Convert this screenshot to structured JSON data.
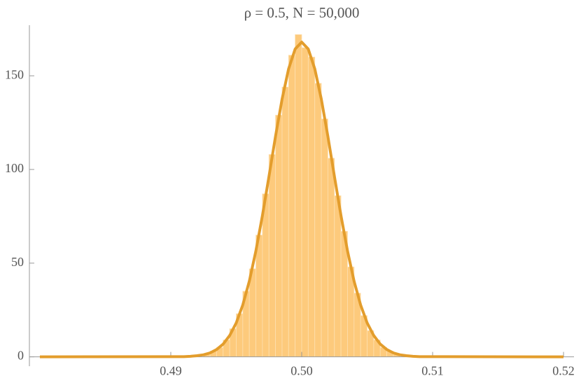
{
  "chart_data": {
    "type": "histogram",
    "title": "ρ = 0.5, N = 50,000",
    "bins": [
      0.4925,
      0.493,
      0.4935,
      0.494,
      0.4945,
      0.495,
      0.4955,
      0.496,
      0.4965,
      0.497,
      0.4975,
      0.498,
      0.4985,
      0.499,
      0.4995,
      0.5,
      0.5005,
      0.501,
      0.5015,
      0.502,
      0.5025,
      0.503,
      0.5035,
      0.504,
      0.5045,
      0.505,
      0.5055,
      0.506,
      0.5065,
      0.507,
      0.5075
    ],
    "counts": [
      1.5,
      3,
      5,
      9,
      15,
      23,
      35,
      47,
      65,
      87,
      108,
      129,
      144,
      161,
      172,
      165,
      160,
      146,
      127,
      106,
      86,
      67,
      48,
      34,
      22,
      14,
      9,
      5,
      3,
      1.5
    ],
    "color": "#fdca7c",
    "curve": {
      "color": "#e39d2c",
      "x": [
        0.48,
        0.491,
        0.4915,
        0.492,
        0.4925,
        0.493,
        0.4935,
        0.494,
        0.4945,
        0.495,
        0.4955,
        0.496,
        0.4965,
        0.497,
        0.4975,
        0.498,
        0.4985,
        0.499,
        0.4995,
        0.5,
        0.5005,
        0.501,
        0.5015,
        0.502,
        0.5025,
        0.503,
        0.5035,
        0.504,
        0.5045,
        0.505,
        0.5055,
        0.506,
        0.5065,
        0.507,
        0.5075,
        0.508,
        0.5085,
        0.509,
        0.52
      ],
      "values": [
        0,
        0.1,
        0.3,
        0.6,
        1.1,
        2.1,
        3.9,
        6.8,
        11.4,
        18.1,
        27.7,
        40.4,
        56.5,
        75.4,
        96.3,
        117.7,
        137.5,
        153.7,
        164.3,
        168,
        164.3,
        153.7,
        137.5,
        117.7,
        96.3,
        75.4,
        56.5,
        40.4,
        27.7,
        18.1,
        11.4,
        6.8,
        3.9,
        2.1,
        1.1,
        0.6,
        0.3,
        0.1,
        0
      ]
    },
    "xlim": [
      0.4792,
      0.5208
    ],
    "ylim": [
      -5,
      177
    ],
    "xticks": [
      0.49,
      {
        "value": 0.5,
        "label": "0.50"
      },
      0.51,
      0.52
    ],
    "yticks": [
      0,
      50,
      100,
      150
    ]
  }
}
